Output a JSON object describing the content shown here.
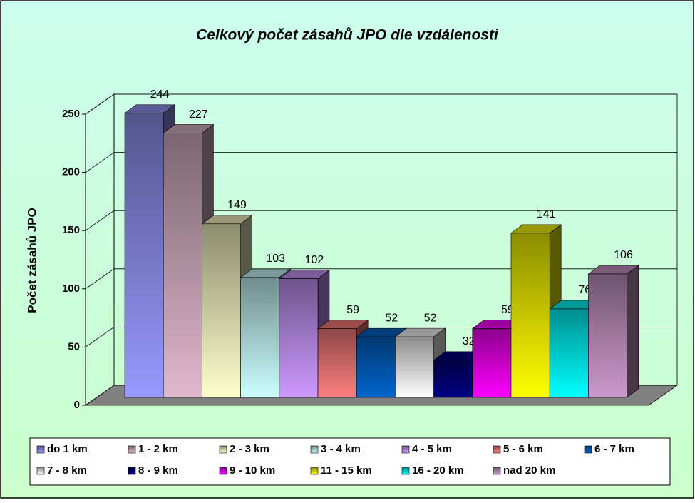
{
  "chart_data": {
    "type": "bar",
    "title": "Celkový počet zásahů JPO dle vzdálenosti",
    "y_label": "Počet zásahů JPO",
    "categories": [
      "do 1 km",
      "1 - 2 km",
      "2 - 3 km",
      "3 - 4 km",
      "4 - 5 km",
      "5 - 6 km",
      "6 - 7 km",
      "7 - 8 km",
      "8 - 9 km",
      "9 - 10 km",
      "11 - 15 km",
      "16 - 20 km",
      "nad 20 km"
    ],
    "values": [
      244,
      227,
      149,
      103,
      102,
      59,
      52,
      52,
      32,
      59,
      141,
      76,
      106
    ],
    "colors": [
      "#9999ff",
      "#e0b8cc",
      "#ffffcc",
      "#ccffff",
      "#cc99ff",
      "#ff8080",
      "#0066cc",
      "#ffffff",
      "#000080",
      "#ff00ff",
      "#ffff00",
      "#00ffff",
      "#cc99cc"
    ],
    "ylim": [
      0,
      250
    ],
    "yticks": [
      0,
      50,
      100,
      150,
      200,
      250
    ],
    "grid": true,
    "legend": "bottom"
  }
}
